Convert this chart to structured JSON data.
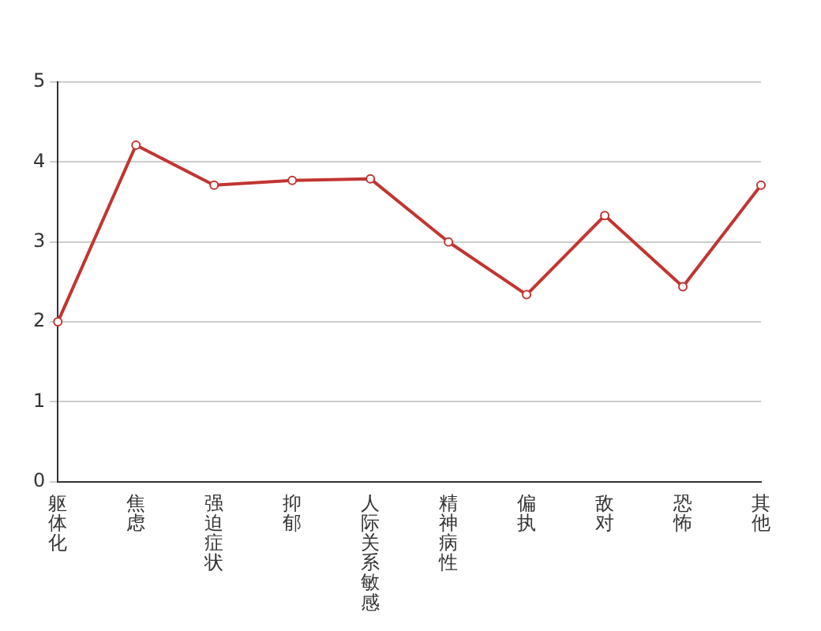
{
  "chart_data": {
    "type": "line",
    "categories": [
      "躯体化",
      "焦虑",
      "强迫症状",
      "抑郁",
      "人际关系敏感",
      "精神病性",
      "偏执",
      "敌对",
      "恐怖",
      "其他"
    ],
    "series": [
      {
        "color": "#c23531",
        "values": [
          2.0,
          4.21,
          3.71,
          3.77,
          3.79,
          3.0,
          2.34,
          3.33,
          2.44,
          3.71
        ]
      }
    ],
    "ylim": [
      0,
      5
    ],
    "yticks": [
      0,
      1,
      2,
      3,
      4,
      5
    ],
    "grid": "y",
    "legend": false,
    "marker": "circle",
    "line_style": "solid"
  }
}
